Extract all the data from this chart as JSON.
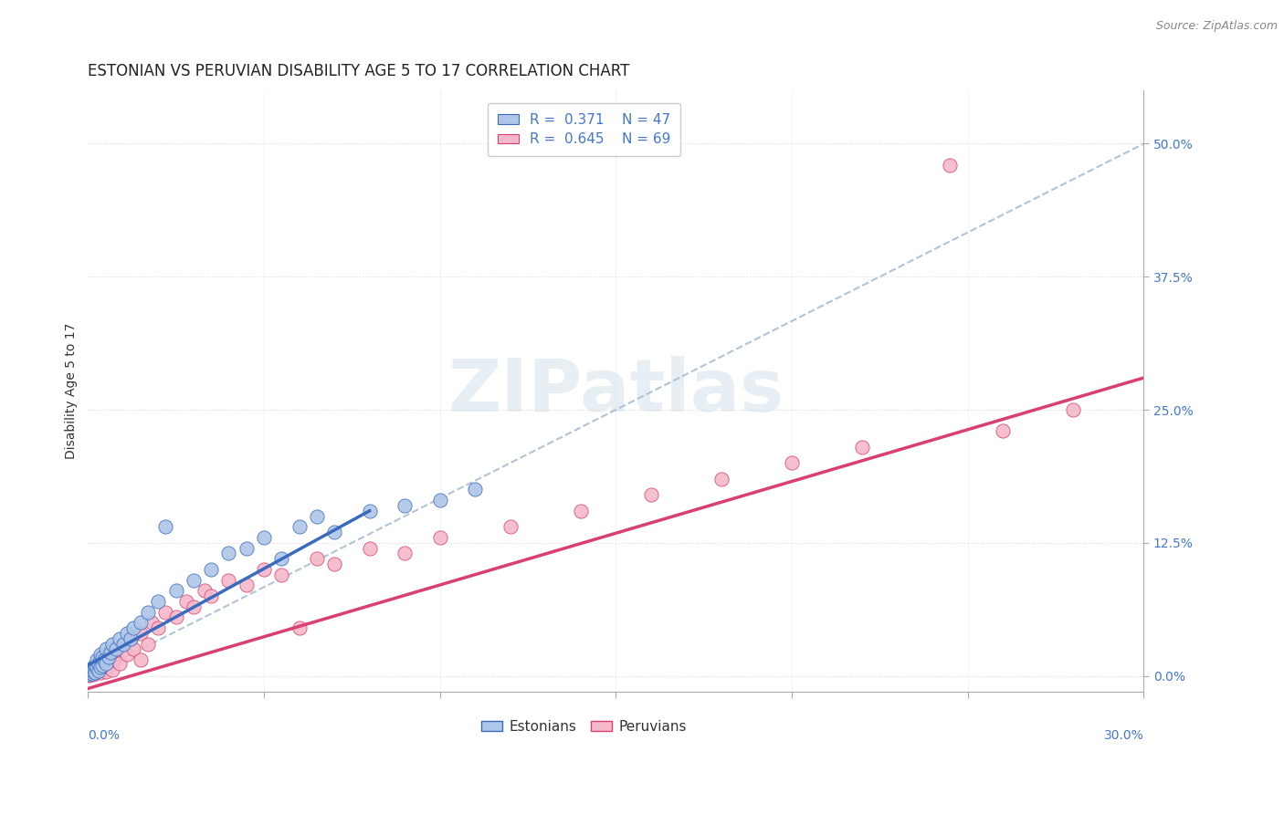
{
  "title": "ESTONIAN VS PERUVIAN DISABILITY AGE 5 TO 17 CORRELATION CHART",
  "source": "Source: ZipAtlas.com",
  "ylabel": "Disability Age 5 to 17",
  "right_ytick_vals": [
    0.0,
    12.5,
    25.0,
    37.5,
    50.0
  ],
  "xlim": [
    0.0,
    30.0
  ],
  "ylim": [
    -1.5,
    55.0
  ],
  "estonian_color": "#aec6e8",
  "peruvian_color": "#f5b8c8",
  "estonian_line_color": "#3a6bbf",
  "peruvian_line_color": "#d94070",
  "dashed_line_color": "#b0c4d8",
  "background_color": "#ffffff",
  "watermark_text": "ZIPatlas",
  "estonian_scatter": [
    [
      0.05,
      0.1
    ],
    [
      0.08,
      0.3
    ],
    [
      0.1,
      0.5
    ],
    [
      0.12,
      0.2
    ],
    [
      0.15,
      0.4
    ],
    [
      0.15,
      0.8
    ],
    [
      0.18,
      0.6
    ],
    [
      0.2,
      0.3
    ],
    [
      0.2,
      1.0
    ],
    [
      0.25,
      0.7
    ],
    [
      0.25,
      1.5
    ],
    [
      0.3,
      0.5
    ],
    [
      0.3,
      1.2
    ],
    [
      0.35,
      0.8
    ],
    [
      0.35,
      2.0
    ],
    [
      0.4,
      1.0
    ],
    [
      0.4,
      1.8
    ],
    [
      0.45,
      1.5
    ],
    [
      0.5,
      1.2
    ],
    [
      0.5,
      2.5
    ],
    [
      0.6,
      1.8
    ],
    [
      0.65,
      2.2
    ],
    [
      0.7,
      3.0
    ],
    [
      0.8,
      2.5
    ],
    [
      0.9,
      3.5
    ],
    [
      1.0,
      3.0
    ],
    [
      1.1,
      4.0
    ],
    [
      1.2,
      3.5
    ],
    [
      1.3,
      4.5
    ],
    [
      1.5,
      5.0
    ],
    [
      1.7,
      6.0
    ],
    [
      2.0,
      7.0
    ],
    [
      2.2,
      14.0
    ],
    [
      2.5,
      8.0
    ],
    [
      3.0,
      9.0
    ],
    [
      3.5,
      10.0
    ],
    [
      4.0,
      11.5
    ],
    [
      4.5,
      12.0
    ],
    [
      5.0,
      13.0
    ],
    [
      5.5,
      11.0
    ],
    [
      6.0,
      14.0
    ],
    [
      6.5,
      15.0
    ],
    [
      7.0,
      13.5
    ],
    [
      8.0,
      15.5
    ],
    [
      9.0,
      16.0
    ],
    [
      10.0,
      16.5
    ],
    [
      11.0,
      17.5
    ]
  ],
  "peruvian_scatter": [
    [
      0.02,
      0.05
    ],
    [
      0.05,
      0.1
    ],
    [
      0.08,
      0.3
    ],
    [
      0.1,
      0.2
    ],
    [
      0.12,
      0.4
    ],
    [
      0.15,
      0.15
    ],
    [
      0.15,
      0.6
    ],
    [
      0.18,
      0.3
    ],
    [
      0.2,
      0.5
    ],
    [
      0.2,
      0.8
    ],
    [
      0.22,
      0.4
    ],
    [
      0.25,
      0.7
    ],
    [
      0.25,
      1.0
    ],
    [
      0.28,
      0.5
    ],
    [
      0.3,
      0.6
    ],
    [
      0.3,
      1.2
    ],
    [
      0.32,
      0.8
    ],
    [
      0.35,
      1.0
    ],
    [
      0.35,
      0.3
    ],
    [
      0.38,
      1.5
    ],
    [
      0.4,
      0.6
    ],
    [
      0.4,
      1.8
    ],
    [
      0.42,
      1.2
    ],
    [
      0.45,
      0.9
    ],
    [
      0.5,
      1.5
    ],
    [
      0.5,
      0.4
    ],
    [
      0.55,
      2.0
    ],
    [
      0.6,
      1.0
    ],
    [
      0.65,
      1.8
    ],
    [
      0.7,
      2.5
    ],
    [
      0.7,
      0.6
    ],
    [
      0.75,
      1.5
    ],
    [
      0.8,
      2.0
    ],
    [
      0.85,
      2.5
    ],
    [
      0.9,
      1.2
    ],
    [
      1.0,
      3.0
    ],
    [
      1.1,
      2.0
    ],
    [
      1.2,
      3.5
    ],
    [
      1.3,
      2.5
    ],
    [
      1.5,
      4.0
    ],
    [
      1.5,
      1.5
    ],
    [
      1.7,
      3.0
    ],
    [
      1.8,
      5.0
    ],
    [
      2.0,
      4.5
    ],
    [
      2.2,
      6.0
    ],
    [
      2.5,
      5.5
    ],
    [
      2.8,
      7.0
    ],
    [
      3.0,
      6.5
    ],
    [
      3.3,
      8.0
    ],
    [
      3.5,
      7.5
    ],
    [
      4.0,
      9.0
    ],
    [
      4.5,
      8.5
    ],
    [
      5.0,
      10.0
    ],
    [
      5.5,
      9.5
    ],
    [
      6.0,
      4.5
    ],
    [
      6.5,
      11.0
    ],
    [
      7.0,
      10.5
    ],
    [
      8.0,
      12.0
    ],
    [
      9.0,
      11.5
    ],
    [
      10.0,
      13.0
    ],
    [
      12.0,
      14.0
    ],
    [
      14.0,
      15.5
    ],
    [
      16.0,
      17.0
    ],
    [
      18.0,
      18.5
    ],
    [
      20.0,
      20.0
    ],
    [
      22.0,
      21.5
    ],
    [
      24.5,
      48.0
    ],
    [
      26.0,
      23.0
    ],
    [
      28.0,
      25.0
    ]
  ],
  "estonian_line_x": [
    0.0,
    8.0
  ],
  "estonian_line_y": [
    1.0,
    15.5
  ],
  "peruvian_line_x": [
    0.0,
    30.0
  ],
  "peruvian_line_y": [
    -1.2,
    28.0
  ],
  "dashed_line_x": [
    0.0,
    30.0
  ],
  "dashed_line_y": [
    0.0,
    50.0
  ],
  "title_fontsize": 12,
  "axis_label_fontsize": 10,
  "tick_fontsize": 10,
  "legend_fontsize": 11
}
